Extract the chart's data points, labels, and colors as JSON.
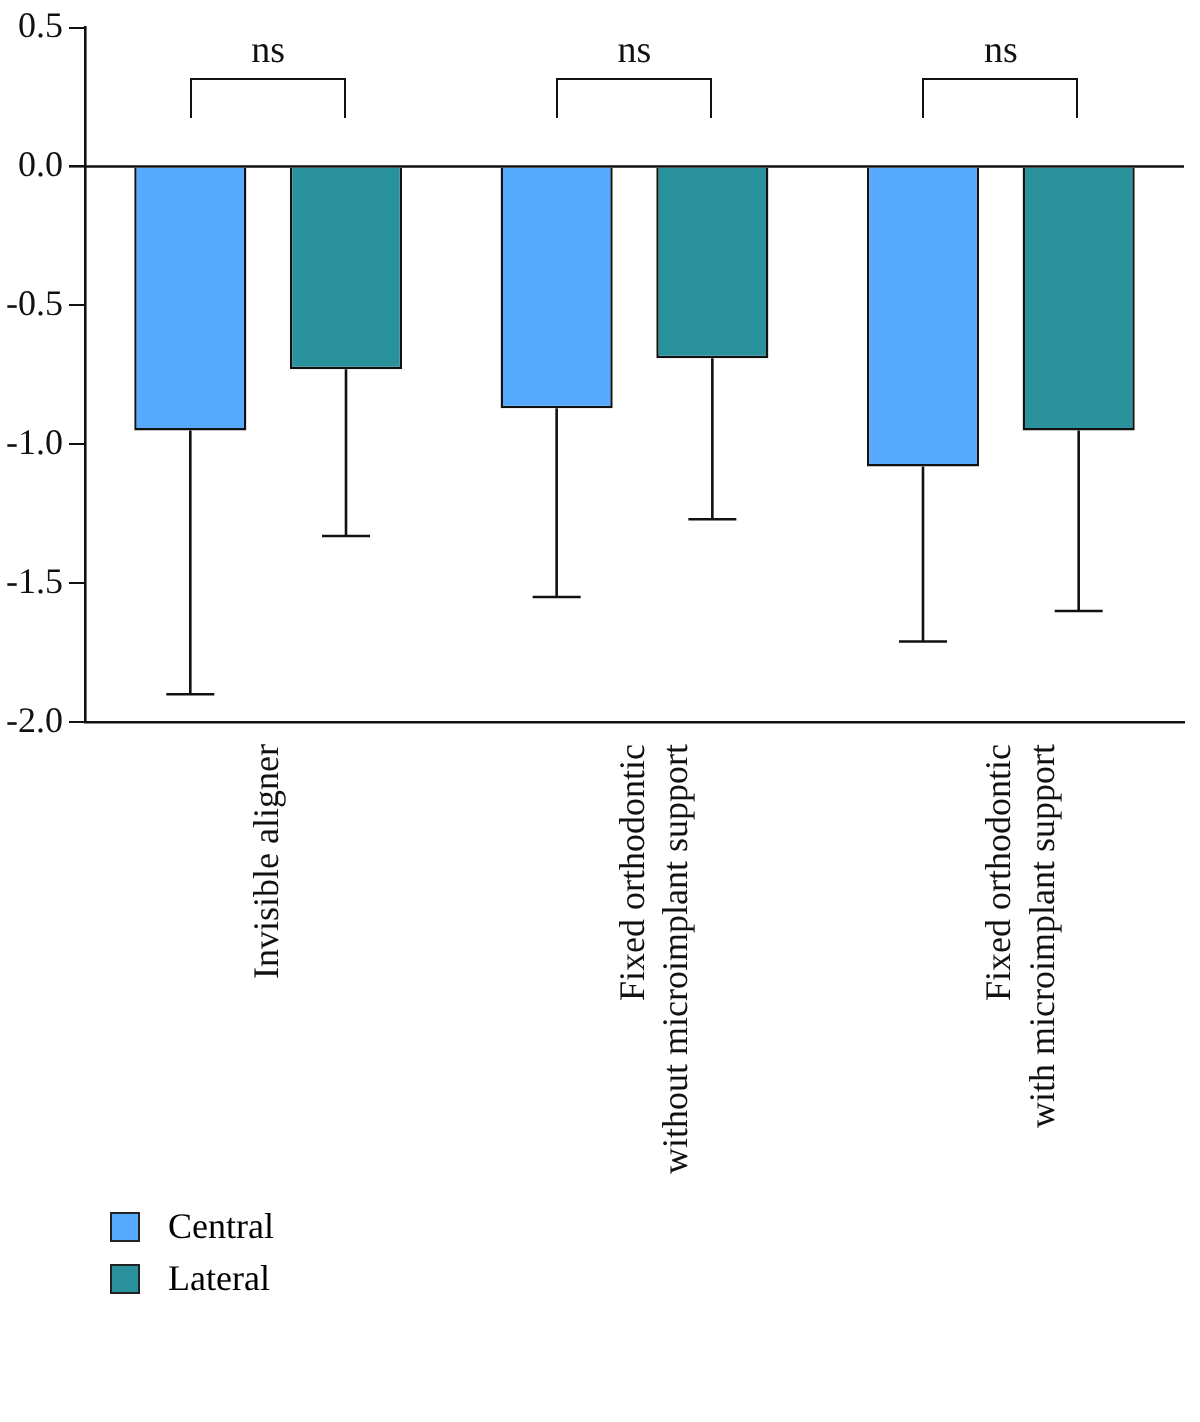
{
  "chart_data": {
    "type": "bar",
    "categories": [
      "Invisible aligner",
      "Fixed orthodontic\nwithout microimplant support",
      "Fixed orthodontic\nwith microimplant support"
    ],
    "series": [
      {
        "name": "Central",
        "color": "#56aaff",
        "values": [
          -0.95,
          -0.87,
          -1.08
        ],
        "errors": [
          [
            -1.9,
            -0.95
          ],
          [
            -1.55,
            -0.87
          ],
          [
            -1.71,
            -1.08
          ]
        ]
      },
      {
        "name": "Lateral",
        "color": "#2a929c",
        "values": [
          -0.73,
          -0.69,
          -0.95
        ],
        "errors": [
          [
            -1.33,
            -0.73
          ],
          [
            -1.27,
            -0.69
          ],
          [
            -1.6,
            -0.95
          ]
        ]
      }
    ],
    "ylim": [
      -2.0,
      0.5
    ],
    "yticks": [
      {
        "value": -2,
        "label": "-2.0"
      },
      {
        "value": -1.5,
        "label": "-1.5"
      },
      {
        "value": -1,
        "label": "-1.0"
      },
      {
        "value": -0.5,
        "label": "-0.5"
      },
      {
        "value": 0,
        "label": "0.0"
      },
      {
        "value": 0.5,
        "label": "0.5"
      }
    ],
    "annotations": [
      "ns",
      "ns",
      "ns"
    ],
    "ref_lines": [
      {
        "axis": "y",
        "value": 0
      }
    ],
    "grid": false,
    "legend": "bottom left"
  }
}
